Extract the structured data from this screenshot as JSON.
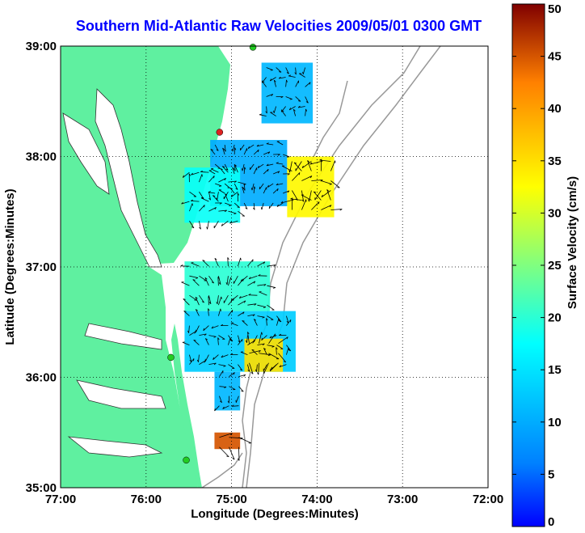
{
  "chart_data": {
    "type": "heatmap",
    "title": "Southern Mid-Atlantic Raw Velocities 2009/05/01 0300 GMT",
    "xlabel": "Longitude (Degrees:Minutes)",
    "ylabel": "Latitude (Degrees:Minutes)",
    "xlim": [
      -77,
      -72
    ],
    "ylim": [
      35,
      39
    ],
    "x_tick_labels": [
      "77:00",
      "76:00",
      "75:00",
      "74:00",
      "73:00",
      "72:00"
    ],
    "y_tick_labels": [
      "35:00",
      "36:00",
      "37:00",
      "38:00",
      "39:00"
    ],
    "grid": true,
    "colorbar": {
      "label": "Surface Velocity (cm/s)",
      "min": 0,
      "max": 50,
      "tick_labels": [
        "0",
        "5",
        "10",
        "15",
        "20",
        "25",
        "30",
        "35",
        "40",
        "45",
        "50"
      ],
      "colormap": "jet"
    },
    "colors": {
      "land": "#5ff0a0",
      "bathymetry": "#999999",
      "grid": "#000000"
    },
    "stations": [
      {
        "lon": -74.75,
        "lat": 38.99,
        "color": "#22cc22"
      },
      {
        "lon": -75.14,
        "lat": 38.22,
        "color": "#dd2222"
      },
      {
        "lon": -75.71,
        "lat": 36.18,
        "color": "#22cc22"
      },
      {
        "lon": -75.53,
        "lat": 35.25,
        "color": "#22cc22"
      }
    ],
    "regions": [
      {
        "lon": [
          -74.65,
          -74.05
        ],
        "lat": [
          38.3,
          38.85
        ],
        "speed": 11
      },
      {
        "lon": [
          -75.25,
          -74.35
        ],
        "lat": [
          37.55,
          38.15
        ],
        "speed": 10
      },
      {
        "lon": [
          -74.35,
          -73.8
        ],
        "lat": [
          37.45,
          38.0
        ],
        "speed": 33
      },
      {
        "lon": [
          -75.55,
          -74.9
        ],
        "lat": [
          37.4,
          37.9
        ],
        "speed": 18
      },
      {
        "lon": [
          -75.55,
          -74.55
        ],
        "lat": [
          36.6,
          37.05
        ],
        "speed": 20
      },
      {
        "lon": [
          -75.55,
          -74.25
        ],
        "lat": [
          36.05,
          36.6
        ],
        "speed": 13
      },
      {
        "lon": [
          -74.85,
          -74.4
        ],
        "lat": [
          36.05,
          36.35
        ],
        "speed": 35
      },
      {
        "lon": [
          -75.2,
          -74.9
        ],
        "lat": [
          35.7,
          36.05
        ],
        "speed": 11
      },
      {
        "lon": [
          -75.2,
          -74.9
        ],
        "lat": [
          35.35,
          35.5
        ],
        "speed": 45
      }
    ]
  }
}
